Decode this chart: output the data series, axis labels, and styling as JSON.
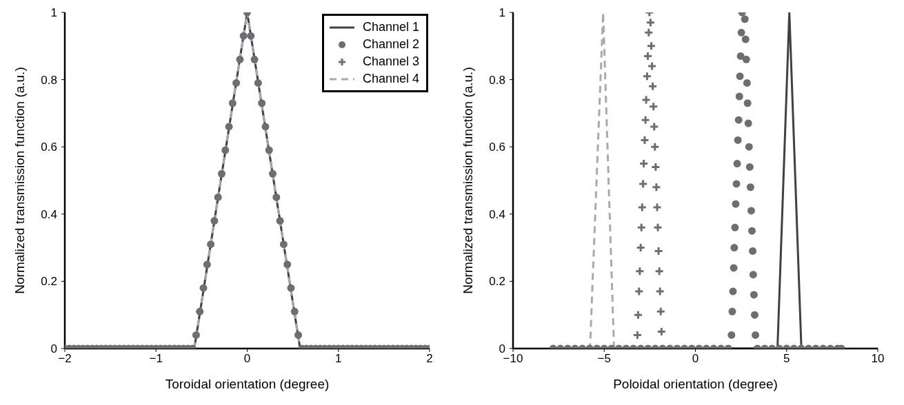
{
  "chart_data": [
    {
      "type": "line",
      "xlabel": "Toroidal orientation (degree)",
      "ylabel": "Normalized transmission function (a.u.)",
      "xlim": [
        -2,
        2
      ],
      "xticks": [
        {
          "value": -2,
          "label": "−2"
        },
        {
          "value": -1,
          "label": "−1"
        },
        0,
        1,
        2
      ],
      "ylim": [
        0,
        1
      ],
      "yticks": [
        0,
        0.2,
        0.4,
        0.6,
        0.8,
        1
      ],
      "legend": "top right",
      "series": [
        {
          "name": "Channel 1",
          "type": "line",
          "color": "#404040",
          "line_style": "solid",
          "marker": "none",
          "x": [
            -2,
            -0.58,
            0,
            0.58,
            2
          ],
          "values": [
            0,
            0,
            1,
            0,
            0
          ]
        },
        {
          "name": "Channel 2",
          "type": "scatter",
          "color": "#6d6e71",
          "marker": "circle",
          "x": [
            -2,
            -1.95,
            -1.9,
            -1.85,
            -1.8,
            -1.75,
            -1.7,
            -1.65,
            -1.6,
            -1.55,
            -1.5,
            -1.45,
            -1.4,
            -1.35,
            -1.3,
            -1.25,
            -1.2,
            -1.15,
            -1.1,
            -1.05,
            -1,
            -0.95,
            -0.9,
            -0.85,
            -0.8,
            -0.75,
            -0.7,
            -0.65,
            -0.6,
            -0.56,
            -0.52,
            -0.48,
            -0.44,
            -0.4,
            -0.36,
            -0.32,
            -0.28,
            -0.24,
            -0.2,
            -0.16,
            -0.12,
            -0.08,
            -0.04,
            0,
            0.04,
            0.08,
            0.12,
            0.16,
            0.2,
            0.24,
            0.28,
            0.32,
            0.36,
            0.4,
            0.44,
            0.48,
            0.52,
            0.56,
            0.6,
            0.65,
            0.7,
            0.75,
            0.8,
            0.85,
            0.9,
            0.95,
            1,
            1.05,
            1.1,
            1.15,
            1.2,
            1.25,
            1.3,
            1.35,
            1.4,
            1.45,
            1.5,
            1.55,
            1.6,
            1.65,
            1.7,
            1.75,
            1.8,
            1.85,
            1.9,
            1.95,
            2
          ],
          "values": [
            0,
            0,
            0,
            0,
            0,
            0,
            0,
            0,
            0,
            0,
            0,
            0,
            0,
            0,
            0,
            0,
            0,
            0,
            0,
            0,
            0,
            0,
            0,
            0,
            0,
            0,
            0,
            0,
            0,
            0.04,
            0.11,
            0.18,
            0.25,
            0.31,
            0.38,
            0.45,
            0.52,
            0.59,
            0.66,
            0.73,
            0.79,
            0.86,
            0.93,
            1,
            0.93,
            0.86,
            0.79,
            0.73,
            0.66,
            0.59,
            0.52,
            0.45,
            0.38,
            0.31,
            0.25,
            0.18,
            0.11,
            0.04,
            0,
            0,
            0,
            0,
            0,
            0,
            0,
            0,
            0,
            0,
            0,
            0,
            0,
            0,
            0,
            0,
            0,
            0,
            0,
            0,
            0,
            0,
            0,
            0,
            0,
            0,
            0,
            0,
            0
          ]
        },
        {
          "name": "Channel 3",
          "type": "scatter",
          "color": "#6d6e71",
          "marker": "cross"
        },
        {
          "name": "Channel 4",
          "type": "line",
          "color": "#a7a9ac",
          "line_style": "dashed",
          "marker": "none",
          "x": [
            -2,
            -0.58,
            0,
            0.58,
            2
          ],
          "values": [
            0,
            0,
            1,
            0,
            0
          ]
        }
      ]
    },
    {
      "type": "line",
      "xlabel": "Poloidal orientation (degree)",
      "ylabel": "Normalized transmission function (a.u.)",
      "xlim": [
        -10,
        10
      ],
      "xticks": [
        {
          "value": -10,
          "label": "−10"
        },
        {
          "value": -5,
          "label": "−5"
        },
        0,
        5,
        10
      ],
      "ylim": [
        0,
        1
      ],
      "yticks": [
        0,
        0.2,
        0.4,
        0.6,
        0.8,
        1
      ],
      "series": [
        {
          "type": "line",
          "color": "#404040",
          "line_style": "solid",
          "marker": "none",
          "x": [
            -7.8,
            4.5,
            5.15,
            5.81,
            8
          ],
          "values": [
            0,
            0,
            1,
            0,
            0
          ]
        },
        {
          "type": "scatter",
          "color": "#6d6e71",
          "marker": "circle",
          "x": [
            -7.8,
            -7.4,
            -7,
            -6.6,
            -6.2,
            -5.8,
            -5.4,
            -5,
            -4.6,
            -4.2,
            -3.8,
            -3.4,
            -3,
            -2.6,
            -2.2,
            -1.8,
            -1.4,
            -1,
            -0.6,
            -0.2,
            0.2,
            0.6,
            1,
            1.4,
            1.8,
            1.98,
            2.02,
            2.06,
            2.1,
            2.13,
            2.17,
            2.21,
            2.25,
            2.29,
            2.33,
            2.37,
            2.41,
            2.44,
            2.48,
            2.52,
            2.56,
            2.71,
            2.75,
            2.79,
            2.83,
            2.86,
            2.9,
            2.94,
            2.98,
            3.02,
            3.06,
            3.1,
            3.14,
            3.17,
            3.21,
            3.25,
            3.29,
            3.4,
            3.8,
            4.2,
            4.6,
            5,
            5.4,
            5.8,
            6.2,
            6.6,
            7,
            7.4,
            7.8,
            8
          ],
          "values": [
            0,
            0,
            0,
            0,
            0,
            0,
            0,
            0,
            0,
            0,
            0,
            0,
            0,
            0,
            0,
            0,
            0,
            0,
            0,
            0,
            0,
            0,
            0,
            0,
            0,
            0.04,
            0.11,
            0.17,
            0.24,
            0.3,
            0.36,
            0.43,
            0.49,
            0.55,
            0.62,
            0.68,
            0.75,
            0.81,
            0.87,
            0.94,
            1,
            0.98,
            0.92,
            0.86,
            0.79,
            0.73,
            0.67,
            0.6,
            0.54,
            0.48,
            0.41,
            0.35,
            0.29,
            0.22,
            0.16,
            0.1,
            0.04,
            0,
            0,
            0,
            0,
            0,
            0,
            0,
            0,
            0,
            0,
            0,
            0,
            0
          ]
        },
        {
          "type": "scatter",
          "color": "#6d6e71",
          "marker": "cross",
          "x": [
            -3.18,
            -3.14,
            -3.09,
            -3.05,
            -3,
            -2.96,
            -2.92,
            -2.87,
            -2.83,
            -2.78,
            -2.74,
            -2.7,
            -2.65,
            -2.61,
            -2.56,
            -2.52,
            -2.46,
            -2.42,
            -2.38,
            -2.34,
            -2.3,
            -2.26,
            -2.22,
            -2.18,
            -2.14,
            -2.1,
            -2.06,
            -2.02,
            -1.98,
            -1.94,
            -1.9,
            -1.86
          ],
          "values": [
            0.04,
            0.1,
            0.17,
            0.23,
            0.3,
            0.36,
            0.42,
            0.49,
            0.55,
            0.62,
            0.68,
            0.74,
            0.81,
            0.87,
            0.94,
            1,
            0.97,
            0.9,
            0.84,
            0.78,
            0.72,
            0.66,
            0.6,
            0.54,
            0.48,
            0.42,
            0.36,
            0.29,
            0.23,
            0.17,
            0.11,
            0.05
          ]
        },
        {
          "type": "line",
          "color": "#a7a9ac",
          "line_style": "dashed",
          "marker": "none",
          "x": [
            -7.8,
            -5.78,
            -5.06,
            -4.46,
            8
          ],
          "values": [
            0,
            0,
            1,
            0,
            0
          ]
        }
      ]
    }
  ]
}
